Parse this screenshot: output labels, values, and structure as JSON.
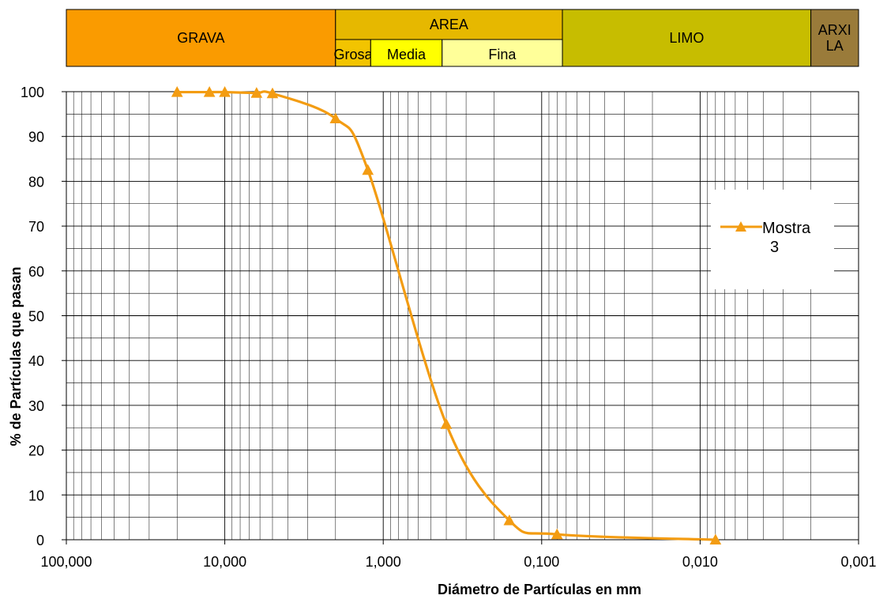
{
  "classification": {
    "bands": [
      {
        "label": "GRAVA",
        "from": 100,
        "to": 2,
        "color": "#fa9b00"
      },
      {
        "label": "AREA",
        "from": 2,
        "to": 0.074,
        "color": "#e6b800"
      },
      {
        "label": "LIMO",
        "from": 0.074,
        "to": 0.002,
        "color": "#c7bd00"
      },
      {
        "label": "ARXI\nLA",
        "from": 0.002,
        "to": 0.001,
        "color": "#9a7b3a"
      }
    ],
    "sub_bands": [
      {
        "label": "Grosa",
        "from": 2,
        "to": 1.2,
        "color": "#f2c400"
      },
      {
        "label": "Media",
        "from": 1.2,
        "to": 0.425,
        "color": "#ffff00"
      },
      {
        "label": "Fina",
        "from": 0.425,
        "to": 0.074,
        "color": "#ffff99"
      }
    ]
  },
  "chart_data": {
    "type": "line",
    "title": "",
    "xlabel": "Diámetro de Partículas en mm",
    "ylabel": "% de Partículas que pasan",
    "x_scale": "log",
    "x_reversed": true,
    "xlim": [
      100,
      0.001
    ],
    "ylim": [
      0,
      100
    ],
    "x_ticks": [
      100,
      10,
      1,
      0.1,
      0.01,
      0.001
    ],
    "x_tick_labels": [
      "100,000",
      "10,000",
      "1,000",
      "0,100",
      "0,010",
      "0,001"
    ],
    "y_ticks": [
      0,
      10,
      20,
      30,
      40,
      50,
      60,
      70,
      80,
      90,
      100
    ],
    "y_tick_labels": [
      "0",
      "10",
      "20",
      "30",
      "40",
      "50",
      "60",
      "70",
      "80",
      "90",
      "100"
    ],
    "grid": true,
    "legend_position": "right",
    "series": [
      {
        "name": "Mostra\n3",
        "color": "#f39c12",
        "marker": "triangle",
        "points": [
          {
            "x": 20,
            "y": 99.9
          },
          {
            "x": 12.5,
            "y": 99.9
          },
          {
            "x": 10,
            "y": 99.9
          },
          {
            "x": 6.3,
            "y": 99.7
          },
          {
            "x": 5,
            "y": 99.6
          },
          {
            "x": 2,
            "y": 94
          },
          {
            "x": 1.25,
            "y": 82.5
          },
          {
            "x": 0.4,
            "y": 25.8
          },
          {
            "x": 0.16,
            "y": 4.3
          },
          {
            "x": 0.08,
            "y": 1.2
          },
          {
            "x": 0.008,
            "y": 0
          }
        ]
      }
    ]
  }
}
